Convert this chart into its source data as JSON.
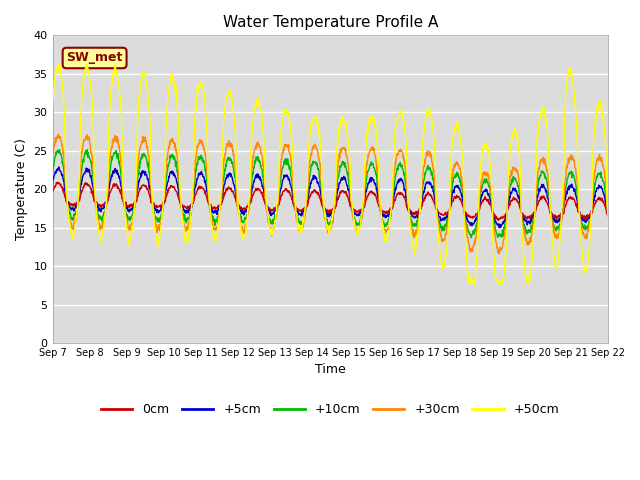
{
  "title": "Water Temperature Profile A",
  "xlabel": "Time",
  "ylabel": "Temperature (C)",
  "ylim": [
    0,
    40
  ],
  "yticks": [
    0,
    5,
    10,
    15,
    20,
    25,
    30,
    35,
    40
  ],
  "annotation_text": "SW_met",
  "annotation_color": "#8B0000",
  "annotation_bg": "#FFFF99",
  "bg_color": "#DCDCDC",
  "colors": {
    "0cm": "#CC0000",
    "+5cm": "#0000CC",
    "+10cm": "#00BB00",
    "+30cm": "#FF8800",
    "+50cm": "#FFFF00"
  },
  "legend_labels": [
    "0cm",
    "+5cm",
    "+10cm",
    "+30cm",
    "+50cm"
  ],
  "x_tick_labels": [
    "Sep 7",
    "Sep 8",
    "Sep 9",
    "Sep 10",
    "Sep 11",
    "Sep 12",
    "Sep 13",
    "Sep 14",
    "Sep 15",
    "Sep 16",
    "Sep 17",
    "Sep 18",
    "Sep 19",
    "Sep 20",
    "Sep 21",
    "Sep 22"
  ],
  "days": 15
}
